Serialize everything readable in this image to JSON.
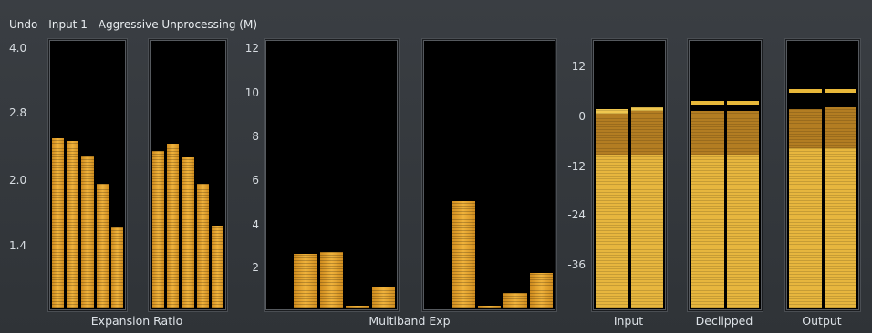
{
  "title": "Undo - Input 1 - Aggressive Unprocessing (M)",
  "colors": {
    "bar": "#e0a228",
    "level_low": "#e7b63e",
    "level_mid": "#b37d22",
    "background": "#34383c"
  },
  "expansion_ratio": {
    "label": "Expansion Ratio",
    "ticks": [
      "4.0",
      "2.8",
      "2.0",
      "1.4"
    ],
    "meter_a": [
      2.55,
      2.52,
      2.33,
      2.0,
      1.6
    ],
    "meter_b": [
      2.4,
      2.48,
      2.32,
      2.0,
      1.62
    ]
  },
  "multiband_exp": {
    "label": "Multiband Exp",
    "ticks": [
      "12",
      "10",
      "8",
      "6",
      "4",
      "2"
    ],
    "meter_a": [
      0,
      2.5,
      2.6,
      0.1,
      1.0
    ],
    "meter_b": [
      0,
      5.0,
      0.1,
      0.7,
      1.6
    ]
  },
  "level_meters": {
    "ticks": [
      "12",
      "0",
      "-12",
      "-24",
      "-36"
    ],
    "input": {
      "label": "Input",
      "channels": [
        {
          "low": -9,
          "mid": 1,
          "top": 2
        },
        {
          "low": -9,
          "mid": 1.5,
          "top": 2.5
        }
      ]
    },
    "declipped": {
      "label": "Declipped",
      "channels": [
        {
          "low": -9,
          "mid": 1.5,
          "peak": 4
        },
        {
          "low": -9,
          "mid": 1.5,
          "peak": 4
        }
      ]
    },
    "output": {
      "label": "Output",
      "channels": [
        {
          "low": -7.5,
          "mid": 2,
          "peak": 7
        },
        {
          "low": -7.5,
          "mid": 2.5,
          "peak": 7
        }
      ]
    }
  }
}
